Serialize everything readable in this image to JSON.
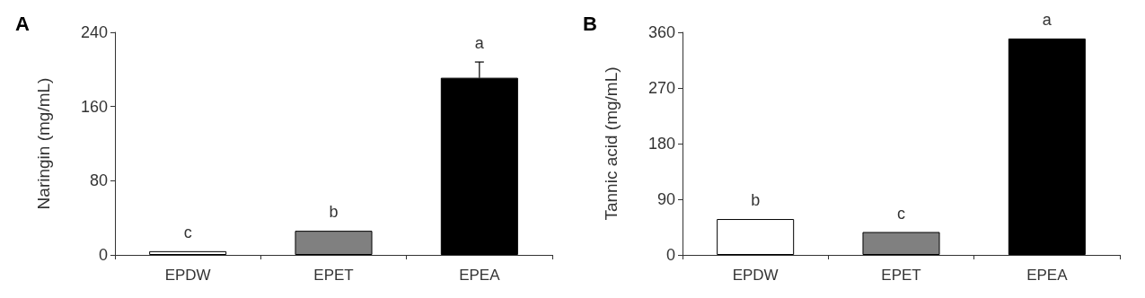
{
  "chart_data": [
    {
      "type": "bar",
      "title": "A",
      "ylabel": "Naringin (mg/mL)",
      "categories": [
        "EPDW",
        "EPET",
        "EPEA"
      ],
      "values": [
        4,
        26,
        191
      ],
      "errors": [
        null,
        null,
        17
      ],
      "colors": [
        "#ffffff",
        "#808080",
        "#000000"
      ],
      "ylim": [
        0,
        240
      ],
      "yticks": [
        0,
        80,
        160,
        240
      ],
      "grid": false,
      "annotations": [
        {
          "text": "c",
          "x": "EPDW",
          "y": 4
        },
        {
          "text": "b",
          "x": "EPET",
          "y": 26
        },
        {
          "text": "a",
          "x": "EPEA",
          "y": 208
        }
      ]
    },
    {
      "type": "bar",
      "title": "B",
      "ylabel": "Tannic acid (mg/mL)",
      "categories": [
        "EPDW",
        "EPET",
        "EPEA"
      ],
      "values": [
        58,
        37,
        350
      ],
      "colors": [
        "#ffffff",
        "#808080",
        "#000000"
      ],
      "ylim": [
        0,
        360
      ],
      "yticks": [
        0,
        90,
        180,
        270,
        360
      ],
      "grid": false,
      "annotations": [
        {
          "text": "b",
          "x": "EPDW",
          "y": 58
        },
        {
          "text": "c",
          "x": "EPET",
          "y": 37
        },
        {
          "text": "a",
          "x": "EPEA",
          "y": 350
        }
      ]
    }
  ]
}
